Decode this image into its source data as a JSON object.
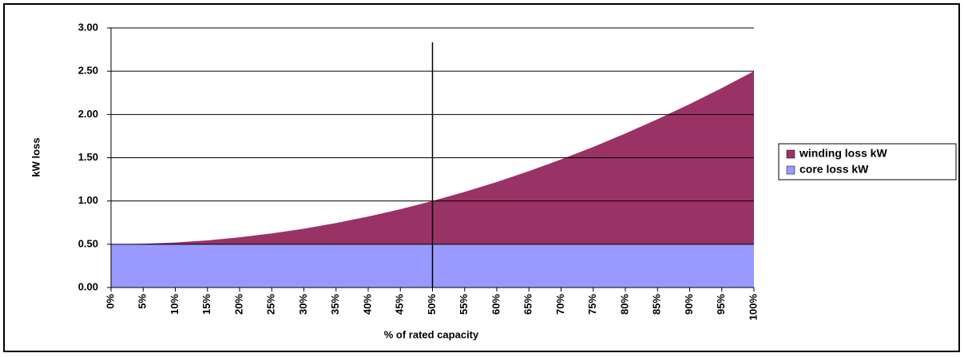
{
  "chart_data": {
    "type": "stacked_area",
    "xlabel": "% of rated capacity",
    "ylabel": "kW loss",
    "categories": [
      "0%",
      "5%",
      "10%",
      "15%",
      "20%",
      "25%",
      "30%",
      "35%",
      "40%",
      "45%",
      "50%",
      "55%",
      "60%",
      "65%",
      "70%",
      "75%",
      "80%",
      "85%",
      "90%",
      "95%",
      "100%"
    ],
    "series": [
      {
        "name": "winding loss kW",
        "color": "#993366",
        "values": [
          0,
          0.005,
          0.02,
          0.045,
          0.08,
          0.125,
          0.18,
          0.245,
          0.32,
          0.405,
          0.5,
          0.605,
          0.72,
          0.845,
          0.98,
          1.125,
          1.28,
          1.445,
          1.62,
          1.805,
          2.0
        ]
      },
      {
        "name": "core loss kW",
        "color": "#9999ff",
        "values": [
          0.5,
          0.5,
          0.5,
          0.5,
          0.5,
          0.5,
          0.5,
          0.5,
          0.5,
          0.5,
          0.5,
          0.5,
          0.5,
          0.5,
          0.5,
          0.5,
          0.5,
          0.5,
          0.5,
          0.5,
          0.5
        ]
      }
    ],
    "ylim": [
      0,
      3
    ],
    "yticks": [
      {
        "value": 0,
        "label": "0.00"
      },
      {
        "value": 0.5,
        "label": "0.50"
      },
      {
        "value": 1,
        "label": "1.00"
      },
      {
        "value": 1.5,
        "label": "1.50"
      },
      {
        "value": 2,
        "label": "2.00"
      },
      {
        "value": 2.5,
        "label": "2.50"
      },
      {
        "value": 3,
        "label": "3.00"
      }
    ],
    "grid": true,
    "legend": "right"
  }
}
